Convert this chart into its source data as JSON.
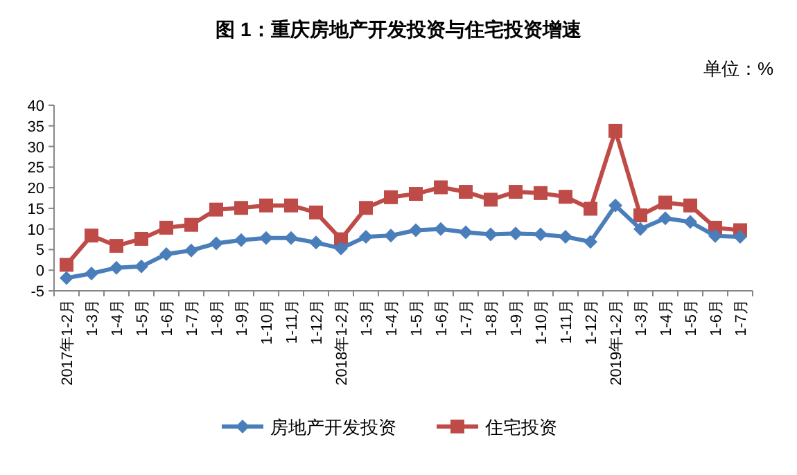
{
  "chart_data": {
    "type": "line",
    "title": "图 1：重庆房地产开发投资与住宅投资增速",
    "annotations": [
      "单位：%"
    ],
    "categories": [
      "2017年1-2月",
      "1-3月",
      "1-4月",
      "1-5月",
      "1-6月",
      "1-7月",
      "1-8月",
      "1-9月",
      "1-10月",
      "1-11月",
      "1-12月",
      "2018年1-2月",
      "1-3月",
      "1-4月",
      "1-5月",
      "1-6月",
      "1-7月",
      "1-8月",
      "1-9月",
      "1-10月",
      "1-11月",
      "1-12月",
      "2019年1-2月",
      "1-3月",
      "1-4月",
      "1-5月",
      "1-6月",
      "1-7月"
    ],
    "series": [
      {
        "name": "房地产开发投资",
        "color": "#4a7ebb",
        "marker": "diamond",
        "values": [
          -1.9,
          -0.8,
          0.6,
          0.9,
          3.9,
          4.8,
          6.5,
          7.3,
          7.8,
          7.8,
          6.7,
          5.3,
          8.1,
          8.4,
          9.7,
          10.0,
          9.2,
          8.7,
          8.9,
          8.7,
          8.1,
          6.9,
          15.7,
          10.0,
          12.6,
          11.7,
          8.3,
          8.1
        ]
      },
      {
        "name": "住宅投资",
        "color": "#be4b48",
        "marker": "square",
        "values": [
          1.3,
          8.4,
          5.9,
          7.6,
          10.3,
          11.0,
          14.7,
          15.1,
          15.7,
          15.7,
          14.0,
          7.5,
          15.1,
          17.7,
          18.5,
          20.1,
          19.0,
          17.1,
          19.0,
          18.7,
          17.8,
          14.9,
          33.8,
          13.3,
          16.4,
          15.7,
          10.3,
          9.7
        ]
      }
    ],
    "ylim": [
      -5,
      40
    ],
    "yticks": [
      -5,
      0,
      5,
      10,
      15,
      20,
      25,
      30,
      35,
      40
    ],
    "grid": false,
    "legend": "bottom"
  }
}
